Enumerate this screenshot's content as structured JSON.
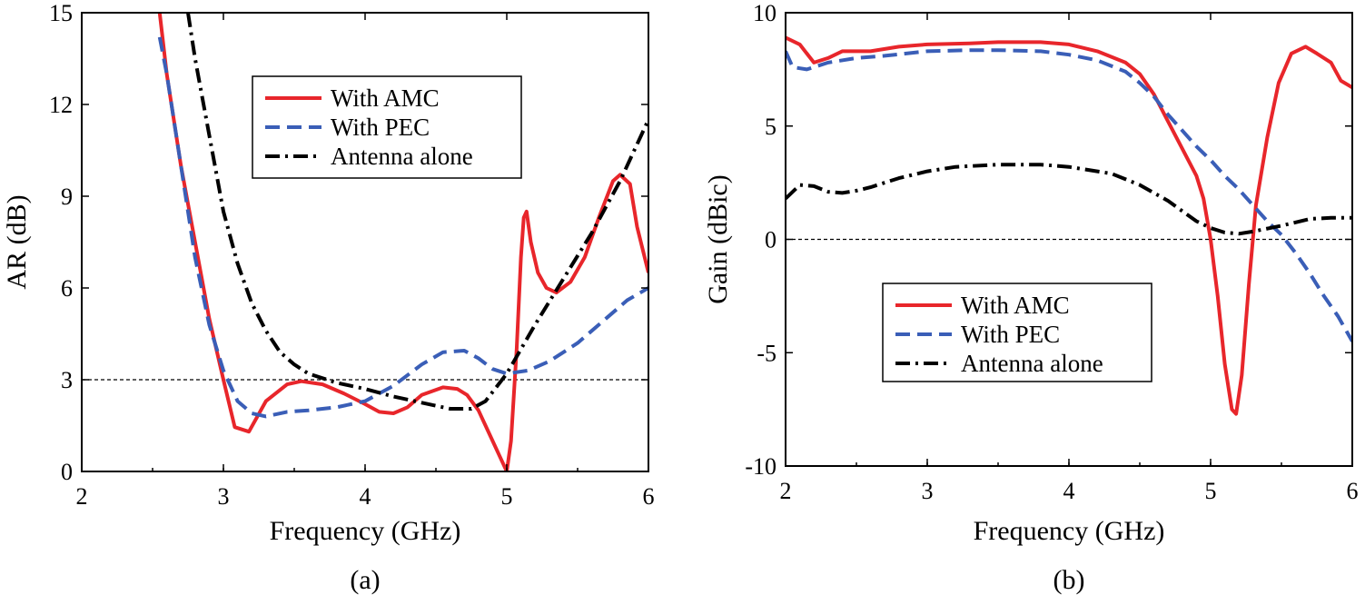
{
  "chart_data": [
    {
      "type": "line",
      "panel_label": "(a)",
      "xlabel": "Frequency (GHz)",
      "ylabel": "AR (dB)",
      "xlim": [
        2,
        6
      ],
      "ylim": [
        0,
        15
      ],
      "xticks": [
        2,
        3,
        4,
        5,
        6
      ],
      "yticks": [
        0,
        3,
        6,
        9,
        12,
        15
      ],
      "reference_line": 3,
      "legend_position": "top-center",
      "series": [
        {
          "name": "With AMC",
          "color": "#e8262b",
          "style": "solid",
          "points": [
            [
              2.55,
              15
            ],
            [
              2.6,
              13
            ],
            [
              2.7,
              10
            ],
            [
              2.8,
              7.5
            ],
            [
              2.9,
              5
            ],
            [
              3.0,
              3
            ],
            [
              3.08,
              1.45
            ],
            [
              3.18,
              1.3
            ],
            [
              3.3,
              2.3
            ],
            [
              3.45,
              2.85
            ],
            [
              3.55,
              2.95
            ],
            [
              3.7,
              2.85
            ],
            [
              3.85,
              2.55
            ],
            [
              4.0,
              2.2
            ],
            [
              4.1,
              1.95
            ],
            [
              4.2,
              1.9
            ],
            [
              4.3,
              2.1
            ],
            [
              4.4,
              2.5
            ],
            [
              4.55,
              2.75
            ],
            [
              4.65,
              2.7
            ],
            [
              4.72,
              2.5
            ],
            [
              4.8,
              2.0
            ],
            [
              4.88,
              1.2
            ],
            [
              4.95,
              0.5
            ],
            [
              5.0,
              0
            ],
            [
              5.03,
              1.0
            ],
            [
              5.07,
              4.0
            ],
            [
              5.1,
              7.0
            ],
            [
              5.12,
              8.3
            ],
            [
              5.14,
              8.5
            ],
            [
              5.17,
              7.5
            ],
            [
              5.22,
              6.5
            ],
            [
              5.28,
              6.0
            ],
            [
              5.35,
              5.85
            ],
            [
              5.45,
              6.2
            ],
            [
              5.55,
              7.0
            ],
            [
              5.65,
              8.3
            ],
            [
              5.75,
              9.5
            ],
            [
              5.8,
              9.7
            ],
            [
              5.87,
              9.4
            ],
            [
              5.92,
              8.0
            ],
            [
              6.0,
              6.5
            ]
          ]
        },
        {
          "name": "With PEC",
          "color": "#3a5eb7",
          "style": "dashed",
          "points": [
            [
              2.55,
              14.2
            ],
            [
              2.6,
              13
            ],
            [
              2.7,
              10
            ],
            [
              2.8,
              7
            ],
            [
              2.9,
              4.8
            ],
            [
              3.0,
              3.3
            ],
            [
              3.1,
              2.3
            ],
            [
              3.2,
              1.9
            ],
            [
              3.3,
              1.8
            ],
            [
              3.45,
              1.95
            ],
            [
              3.6,
              2.0
            ],
            [
              3.8,
              2.1
            ],
            [
              4.0,
              2.3
            ],
            [
              4.2,
              2.8
            ],
            [
              4.4,
              3.5
            ],
            [
              4.55,
              3.9
            ],
            [
              4.7,
              3.95
            ],
            [
              4.8,
              3.7
            ],
            [
              4.9,
              3.35
            ],
            [
              5.0,
              3.2
            ],
            [
              5.15,
              3.3
            ],
            [
              5.3,
              3.6
            ],
            [
              5.5,
              4.2
            ],
            [
              5.7,
              5.0
            ],
            [
              5.85,
              5.6
            ],
            [
              6.0,
              6.0
            ]
          ]
        },
        {
          "name": "Antenna alone",
          "color": "#000000",
          "style": "dashdot",
          "points": [
            [
              2.75,
              15
            ],
            [
              2.8,
              13.5
            ],
            [
              2.9,
              11
            ],
            [
              3.0,
              8.5
            ],
            [
              3.1,
              6.8
            ],
            [
              3.2,
              5.5
            ],
            [
              3.3,
              4.6
            ],
            [
              3.4,
              3.9
            ],
            [
              3.5,
              3.5
            ],
            [
              3.6,
              3.2
            ],
            [
              3.8,
              2.9
            ],
            [
              4.0,
              2.7
            ],
            [
              4.2,
              2.45
            ],
            [
              4.4,
              2.25
            ],
            [
              4.6,
              2.05
            ],
            [
              4.75,
              2.05
            ],
            [
              4.85,
              2.3
            ],
            [
              5.0,
              3.2
            ],
            [
              5.2,
              4.8
            ],
            [
              5.4,
              6.3
            ],
            [
              5.6,
              7.8
            ],
            [
              5.8,
              9.5
            ],
            [
              6.0,
              11.5
            ]
          ]
        }
      ]
    },
    {
      "type": "line",
      "panel_label": "(b)",
      "xlabel": "Frequency (GHz)",
      "ylabel": "Gain (dBic)",
      "xlim": [
        2,
        6
      ],
      "ylim": [
        -10,
        10
      ],
      "xticks": [
        2,
        3,
        4,
        5,
        6
      ],
      "yticks": [
        -10,
        -5,
        0,
        5,
        10
      ],
      "reference_line": 0,
      "legend_position": "bottom-center",
      "series": [
        {
          "name": "With AMC",
          "color": "#e8262b",
          "style": "solid",
          "points": [
            [
              2.0,
              8.9
            ],
            [
              2.1,
              8.6
            ],
            [
              2.2,
              7.8
            ],
            [
              2.3,
              8.0
            ],
            [
              2.4,
              8.3
            ],
            [
              2.6,
              8.3
            ],
            [
              2.8,
              8.5
            ],
            [
              3.0,
              8.6
            ],
            [
              3.3,
              8.65
            ],
            [
              3.5,
              8.7
            ],
            [
              3.8,
              8.7
            ],
            [
              4.0,
              8.6
            ],
            [
              4.2,
              8.3
            ],
            [
              4.4,
              7.8
            ],
            [
              4.5,
              7.3
            ],
            [
              4.6,
              6.4
            ],
            [
              4.7,
              5.2
            ],
            [
              4.8,
              4.0
            ],
            [
              4.9,
              2.8
            ],
            [
              4.95,
              1.8
            ],
            [
              5.0,
              0
            ],
            [
              5.05,
              -2.5
            ],
            [
              5.1,
              -5.5
            ],
            [
              5.15,
              -7.5
            ],
            [
              5.18,
              -7.7
            ],
            [
              5.22,
              -6.0
            ],
            [
              5.27,
              -2.0
            ],
            [
              5.32,
              1.5
            ],
            [
              5.4,
              4.5
            ],
            [
              5.48,
              6.9
            ],
            [
              5.57,
              8.2
            ],
            [
              5.67,
              8.5
            ],
            [
              5.75,
              8.2
            ],
            [
              5.85,
              7.8
            ],
            [
              5.92,
              7.0
            ],
            [
              6.0,
              6.7
            ]
          ]
        },
        {
          "name": "With PEC",
          "color": "#3a5eb7",
          "style": "dashed",
          "points": [
            [
              2.0,
              8.3
            ],
            [
              2.05,
              7.6
            ],
            [
              2.15,
              7.5
            ],
            [
              2.3,
              7.8
            ],
            [
              2.5,
              8.0
            ],
            [
              2.7,
              8.1
            ],
            [
              3.0,
              8.3
            ],
            [
              3.3,
              8.35
            ],
            [
              3.5,
              8.35
            ],
            [
              3.8,
              8.3
            ],
            [
              4.0,
              8.15
            ],
            [
              4.2,
              7.9
            ],
            [
              4.4,
              7.4
            ],
            [
              4.5,
              6.9
            ],
            [
              4.6,
              6.3
            ],
            [
              4.7,
              5.5
            ],
            [
              4.8,
              4.8
            ],
            [
              4.9,
              4.1
            ],
            [
              5.0,
              3.5
            ],
            [
              5.1,
              2.8
            ],
            [
              5.2,
              2.2
            ],
            [
              5.3,
              1.5
            ],
            [
              5.4,
              0.8
            ],
            [
              5.5,
              0.2
            ],
            [
              5.6,
              -0.6
            ],
            [
              5.7,
              -1.5
            ],
            [
              5.8,
              -2.5
            ],
            [
              5.9,
              -3.4
            ],
            [
              6.0,
              -4.5
            ]
          ]
        },
        {
          "name": "Antenna alone",
          "color": "#000000",
          "style": "dashdot",
          "points": [
            [
              2.0,
              1.8
            ],
            [
              2.1,
              2.4
            ],
            [
              2.2,
              2.35
            ],
            [
              2.3,
              2.1
            ],
            [
              2.4,
              2.05
            ],
            [
              2.5,
              2.15
            ],
            [
              2.6,
              2.3
            ],
            [
              2.8,
              2.7
            ],
            [
              3.0,
              3.0
            ],
            [
              3.2,
              3.2
            ],
            [
              3.5,
              3.3
            ],
            [
              3.8,
              3.3
            ],
            [
              4.0,
              3.2
            ],
            [
              4.3,
              2.9
            ],
            [
              4.5,
              2.4
            ],
            [
              4.7,
              1.7
            ],
            [
              4.9,
              0.8
            ],
            [
              5.0,
              0.5
            ],
            [
              5.1,
              0.3
            ],
            [
              5.2,
              0.25
            ],
            [
              5.3,
              0.35
            ],
            [
              5.5,
              0.6
            ],
            [
              5.7,
              0.9
            ],
            [
              5.85,
              0.95
            ],
            [
              6.0,
              0.95
            ]
          ]
        }
      ]
    }
  ]
}
